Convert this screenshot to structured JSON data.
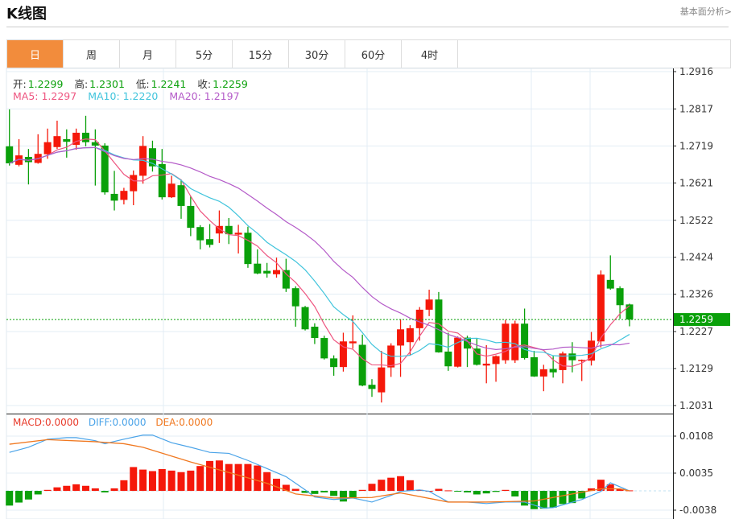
{
  "header": {
    "title": "K线图",
    "link": "基本面分析>"
  },
  "tabs": [
    {
      "label": "日",
      "active": true
    },
    {
      "label": "周"
    },
    {
      "label": "月"
    },
    {
      "label": "5分"
    },
    {
      "label": "15分"
    },
    {
      "label": "30分"
    },
    {
      "label": "60分"
    },
    {
      "label": "4时"
    }
  ],
  "ohlc_info": {
    "open_label": "开:",
    "open": "1.2299",
    "high_label": "高:",
    "high": "1.2301",
    "low_label": "低:",
    "low": "1.2241",
    "close_label": "收:",
    "close": "1.2259"
  },
  "ma_info": {
    "ma5": "MA5: 1.2297",
    "ma10": "MA10: 1.2220",
    "ma20": "MA20: 1.2197"
  },
  "macd_info": {
    "macd": "MACD:0.0000",
    "diff": "DIFF:0.0000",
    "dea": "DEA:0.0000"
  },
  "colors": {
    "up": "#f5180a",
    "down": "#0aa00a",
    "ma5": "#ee5580",
    "ma10": "#40c4dc",
    "ma20": "#b45ac8",
    "diff": "#4aa3e8",
    "dea": "#f07820",
    "accent": "#f28c3c"
  },
  "chart_data": [
    {
      "type": "candlestick",
      "ylim": [
        1.2031,
        1.2916
      ],
      "yticks": [
        "1.2916",
        "1.2817",
        "1.2719",
        "1.2621",
        "1.2522",
        "1.2424",
        "1.2326",
        "1.2227",
        "1.2129",
        "1.2031"
      ],
      "current_price": "1.2259",
      "grid": true,
      "candles_ohlc": [
        [
          1.2718,
          1.2816,
          1.2667,
          1.2673
        ],
        [
          1.2669,
          1.2737,
          1.2665,
          1.2694
        ],
        [
          1.269,
          1.2711,
          1.2617,
          1.2676
        ],
        [
          1.2674,
          1.275,
          1.2672,
          1.2698
        ],
        [
          1.2697,
          1.2765,
          1.2685,
          1.2729
        ],
        [
          1.2716,
          1.2786,
          1.2711,
          1.2745
        ],
        [
          1.2737,
          1.2763,
          1.2688,
          1.273
        ],
        [
          1.2722,
          1.2765,
          1.2709,
          1.2754
        ],
        [
          1.2754,
          1.2799,
          1.2718,
          1.2729
        ],
        [
          1.2729,
          1.2763,
          1.2614,
          1.272
        ],
        [
          1.272,
          1.2726,
          1.259,
          1.2596
        ],
        [
          1.2592,
          1.2653,
          1.2548,
          1.2574
        ],
        [
          1.2576,
          1.2608,
          1.2564,
          1.26
        ],
        [
          1.2599,
          1.2654,
          1.2562,
          1.2642
        ],
        [
          1.264,
          1.2745,
          1.2619,
          1.2719
        ],
        [
          1.2713,
          1.2733,
          1.2651,
          1.2665
        ],
        [
          1.2671,
          1.2711,
          1.2577,
          1.2583
        ],
        [
          1.2583,
          1.264,
          1.2581,
          1.2619
        ],
        [
          1.2615,
          1.263,
          1.2526,
          1.256
        ],
        [
          1.256,
          1.2587,
          1.248,
          1.2502
        ],
        [
          1.2504,
          1.2509,
          1.2445,
          1.2469
        ],
        [
          1.2472,
          1.2512,
          1.245,
          1.2457
        ],
        [
          1.2487,
          1.2548,
          1.2462,
          1.2507
        ],
        [
          1.2507,
          1.2528,
          1.2459,
          1.2485
        ],
        [
          1.2484,
          1.251,
          1.2434,
          1.2489
        ],
        [
          1.2489,
          1.2505,
          1.2396,
          1.2406
        ],
        [
          1.2407,
          1.2445,
          1.2379,
          1.2381
        ],
        [
          1.2388,
          1.2409,
          1.237,
          1.2381
        ],
        [
          1.2379,
          1.2423,
          1.237,
          1.239
        ],
        [
          1.239,
          1.242,
          1.2332,
          1.2341
        ],
        [
          1.2342,
          1.2347,
          1.224,
          1.2294
        ],
        [
          1.2292,
          1.2295,
          1.223,
          1.2233
        ],
        [
          1.224,
          1.2249,
          1.2194,
          1.221
        ],
        [
          1.221,
          1.2216,
          1.2153,
          1.2156
        ],
        [
          1.2156,
          1.2164,
          1.211,
          1.2133
        ],
        [
          1.2133,
          1.2224,
          1.2121,
          1.2201
        ],
        [
          1.2196,
          1.227,
          1.2182,
          1.2201
        ],
        [
          1.2192,
          1.2219,
          1.2082,
          1.2084
        ],
        [
          1.2086,
          1.2101,
          1.2054,
          1.2075
        ],
        [
          1.2066,
          1.2176,
          1.2039,
          1.2132
        ],
        [
          1.2132,
          1.2196,
          1.2107,
          1.219
        ],
        [
          1.219,
          1.226,
          1.2107,
          1.2233
        ],
        [
          1.2199,
          1.2244,
          1.2164,
          1.2236
        ],
        [
          1.2236,
          1.2292,
          1.2203,
          1.2285
        ],
        [
          1.2285,
          1.2338,
          1.2268,
          1.2312
        ],
        [
          1.2312,
          1.2332,
          1.2171,
          1.2172
        ],
        [
          1.2174,
          1.2224,
          1.2123,
          1.2135
        ],
        [
          1.2134,
          1.2214,
          1.2132,
          1.2211
        ],
        [
          1.2211,
          1.2216,
          1.2133,
          1.2182
        ],
        [
          1.2182,
          1.221,
          1.2137,
          1.2139
        ],
        [
          1.2137,
          1.2191,
          1.209,
          1.2142
        ],
        [
          1.2141,
          1.2164,
          1.2094,
          1.2162
        ],
        [
          1.2151,
          1.2258,
          1.2142,
          1.2248
        ],
        [
          1.2151,
          1.2256,
          1.2144,
          1.2248
        ],
        [
          1.2248,
          1.2288,
          1.2153,
          1.2157
        ],
        [
          1.2159,
          1.2176,
          1.2107,
          1.2108
        ],
        [
          1.2108,
          1.2139,
          1.2069,
          1.2127
        ],
        [
          1.2128,
          1.2162,
          1.2105,
          1.2119
        ],
        [
          1.2125,
          1.2174,
          1.209,
          1.2169
        ],
        [
          1.2169,
          1.2199,
          1.2119,
          1.2151
        ],
        [
          1.215,
          1.2153,
          1.2096,
          1.2152
        ],
        [
          1.215,
          1.2226,
          1.2137,
          1.2203
        ],
        [
          1.2201,
          1.2389,
          1.2185,
          1.2378
        ],
        [
          1.2364,
          1.2429,
          1.2338,
          1.2341
        ],
        [
          1.2342,
          1.2347,
          1.2261,
          1.2297
        ],
        [
          1.2299,
          1.2301,
          1.2241,
          1.2259
        ]
      ],
      "moving_averages": [
        5,
        10,
        20
      ]
    },
    {
      "type": "macd",
      "ylim": [
        -0.0038,
        0.0108
      ],
      "yticks": [
        "0.0108",
        "0.0035",
        "-0.0038"
      ],
      "macd_bars": [
        -0.0029,
        -0.0023,
        -0.0017,
        -0.0007,
        0.0002,
        0.0007,
        0.001,
        0.0013,
        0.001,
        0.0005,
        -0.0003,
        0.0005,
        0.0021,
        0.0047,
        0.0042,
        0.0039,
        0.0043,
        0.004,
        0.0037,
        0.004,
        0.0049,
        0.0059,
        0.006,
        0.0053,
        0.0053,
        0.0053,
        0.005,
        0.0037,
        0.0024,
        0.0012,
        0.0004,
        -0.0004,
        -0.0006,
        -0.0003,
        -0.001,
        -0.0021,
        -0.0015,
        0.0002,
        0.0014,
        0.0022,
        0.0026,
        0.0029,
        0.0021,
        0.0002,
        0.0,
        0.0004,
        0.0001,
        -0.0001,
        -0.0003,
        -0.0007,
        -0.0005,
        -0.0002,
        0.0002,
        -0.0011,
        -0.0029,
        -0.0036,
        -0.0035,
        -0.0033,
        -0.0026,
        -0.0024,
        -0.0015,
        0.0005,
        0.0022,
        0.0013,
        0.0004,
        0.0001
      ],
      "diff": [
        [
          1,
          0.0076
        ],
        [
          3,
          0.0086
        ],
        [
          5,
          0.0102
        ],
        [
          7,
          0.0105
        ],
        [
          8,
          0.0105
        ],
        [
          10,
          0.0099
        ],
        [
          11,
          0.0093
        ],
        [
          13,
          0.0102
        ],
        [
          15,
          0.011
        ],
        [
          16,
          0.011
        ],
        [
          18,
          0.0095
        ],
        [
          20,
          0.0086
        ],
        [
          22,
          0.0076
        ],
        [
          24,
          0.0074
        ],
        [
          26,
          0.006
        ],
        [
          28,
          0.0044
        ],
        [
          30,
          0.0028
        ],
        [
          32,
          0.0002
        ],
        [
          33,
          -0.0012
        ],
        [
          35,
          -0.0017
        ],
        [
          37,
          -0.0014
        ],
        [
          39,
          -0.0022
        ],
        [
          41,
          -0.0009
        ],
        [
          42,
          -0.0001
        ],
        [
          44,
          0.0002
        ],
        [
          45,
          -0.0001
        ],
        [
          47,
          -0.0022
        ],
        [
          49,
          -0.0022
        ],
        [
          51,
          -0.0025
        ],
        [
          53,
          -0.0022
        ],
        [
          55,
          -0.0022
        ],
        [
          57,
          -0.0034
        ],
        [
          58,
          -0.0033
        ],
        [
          61,
          -0.0017
        ],
        [
          63,
          -0.0001
        ],
        [
          64,
          0.0016
        ],
        [
          66,
          0.0
        ]
      ],
      "dea": [
        [
          1,
          0.0092
        ],
        [
          5,
          0.0101
        ],
        [
          10,
          0.0097
        ],
        [
          13,
          0.0093
        ],
        [
          15,
          0.0086
        ],
        [
          20,
          0.0057
        ],
        [
          25,
          0.0031
        ],
        [
          28,
          0.0015
        ],
        [
          31,
          -0.0006
        ],
        [
          35,
          -0.0014
        ],
        [
          39,
          -0.0013
        ],
        [
          42,
          -0.0004
        ],
        [
          47,
          -0.0022
        ],
        [
          51,
          -0.0022
        ],
        [
          56,
          -0.002
        ],
        [
          60,
          -0.0006
        ],
        [
          63,
          0.0004
        ],
        [
          65,
          0.0004
        ],
        [
          66,
          0.0
        ]
      ]
    }
  ]
}
